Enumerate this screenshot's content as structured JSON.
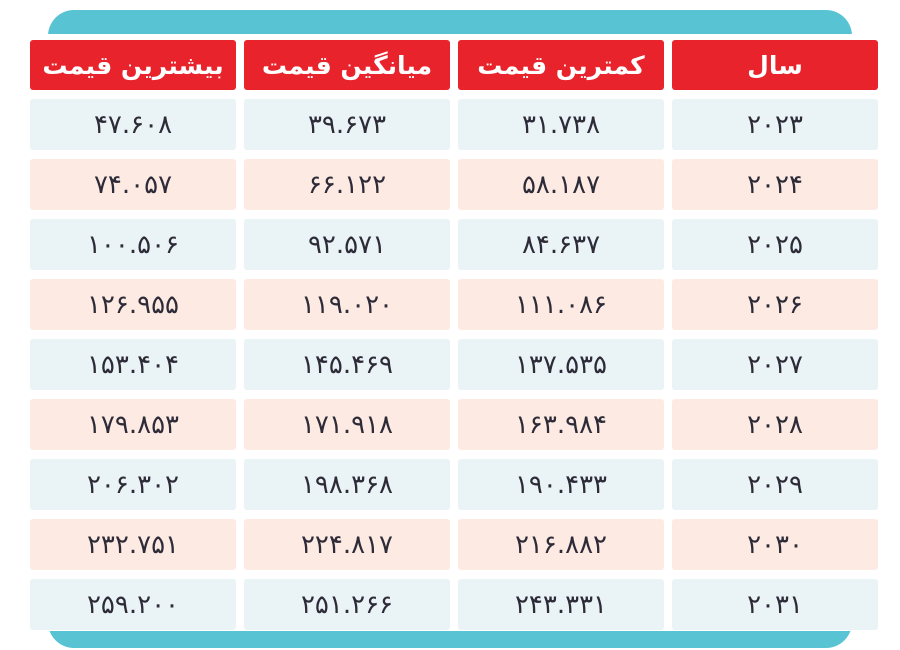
{
  "colors": {
    "header_red": "#e8232b",
    "band_teal": "#57c3d3",
    "row_blue": "#eaf3f6",
    "row_pink": "#fdebe3",
    "text_dark": "#2d2b38",
    "header_text": "#ffffff"
  },
  "table": {
    "columns": [
      {
        "id": "year",
        "label": "سال"
      },
      {
        "id": "min-price",
        "label": "کمترین قیمت"
      },
      {
        "id": "avg-price",
        "label": "میانگین قیمت"
      },
      {
        "id": "max-price",
        "label": "بیشترین قیمت"
      }
    ],
    "rows": [
      {
        "cells": [
          "۲۰۲۳",
          "۳۱.۷۳۸",
          "۳۹.۶۷۳",
          "۴۷.۶۰۸"
        ]
      },
      {
        "cells": [
          "۲۰۲۴",
          "۵۸.۱۸۷",
          "۶۶.۱۲۲",
          "۷۴.۰۵۷"
        ]
      },
      {
        "cells": [
          "۲۰۲۵",
          "۸۴.۶۳۷",
          "۹۲.۵۷۱",
          "۱۰۰.۵۰۶"
        ]
      },
      {
        "cells": [
          "۲۰۲۶",
          "۱۱۱.۰۸۶",
          "۱۱۹.۰۲۰",
          "۱۲۶.۹۵۵"
        ]
      },
      {
        "cells": [
          "۲۰۲۷",
          "۱۳۷.۵۳۵",
          "۱۴۵.۴۶۹",
          "۱۵۳.۴۰۴"
        ]
      },
      {
        "cells": [
          "۲۰۲۸",
          "۱۶۳.۹۸۴",
          "۱۷۱.۹۱۸",
          "۱۷۹.۸۵۳"
        ]
      },
      {
        "cells": [
          "۲۰۲۹",
          "۱۹۰.۴۳۳",
          "۱۹۸.۳۶۸",
          "۲۰۶.۳۰۲"
        ]
      },
      {
        "cells": [
          "۲۰۳۰",
          "۲۱۶.۸۸۲",
          "۲۲۴.۸۱۷",
          "۲۳۲.۷۵۱"
        ]
      },
      {
        "cells": [
          "۲۰۳۱",
          "۲۴۳.۳۳۱",
          "۲۵۱.۲۶۶",
          "۲۵۹.۲۰۰"
        ]
      }
    ]
  },
  "chart_data": {
    "type": "table",
    "title": "",
    "columns": [
      "سال",
      "کمترین قیمت",
      "میانگین قیمت",
      "بیشترین قیمت"
    ],
    "direction": "rtl",
    "rows": [
      {
        "year": 2023,
        "min": "31.738",
        "avg": "39.673",
        "max": "47.608"
      },
      {
        "year": 2024,
        "min": "58.187",
        "avg": "66.122",
        "max": "74.057"
      },
      {
        "year": 2025,
        "min": "84.637",
        "avg": "92.571",
        "max": "100.506"
      },
      {
        "year": 2026,
        "min": "111.086",
        "avg": "119.020",
        "max": "126.955"
      },
      {
        "year": 2027,
        "min": "137.535",
        "avg": "145.469",
        "max": "153.404"
      },
      {
        "year": 2028,
        "min": "163.984",
        "avg": "171.918",
        "max": "179.853"
      },
      {
        "year": 2029,
        "min": "190.433",
        "avg": "198.368",
        "max": "206.302"
      },
      {
        "year": 2030,
        "min": "216.882",
        "avg": "224.817",
        "max": "232.751"
      },
      {
        "year": 2031,
        "min": "243.331",
        "avg": "251.266",
        "max": "259.200"
      }
    ],
    "row_tones": [
      "blue",
      "pink",
      "blue",
      "pink",
      "blue",
      "pink",
      "blue",
      "pink",
      "blue"
    ],
    "layout_hints": {
      "header_background": "#e8232b",
      "decorative_bands": "teal rounded bars above and below table"
    }
  }
}
